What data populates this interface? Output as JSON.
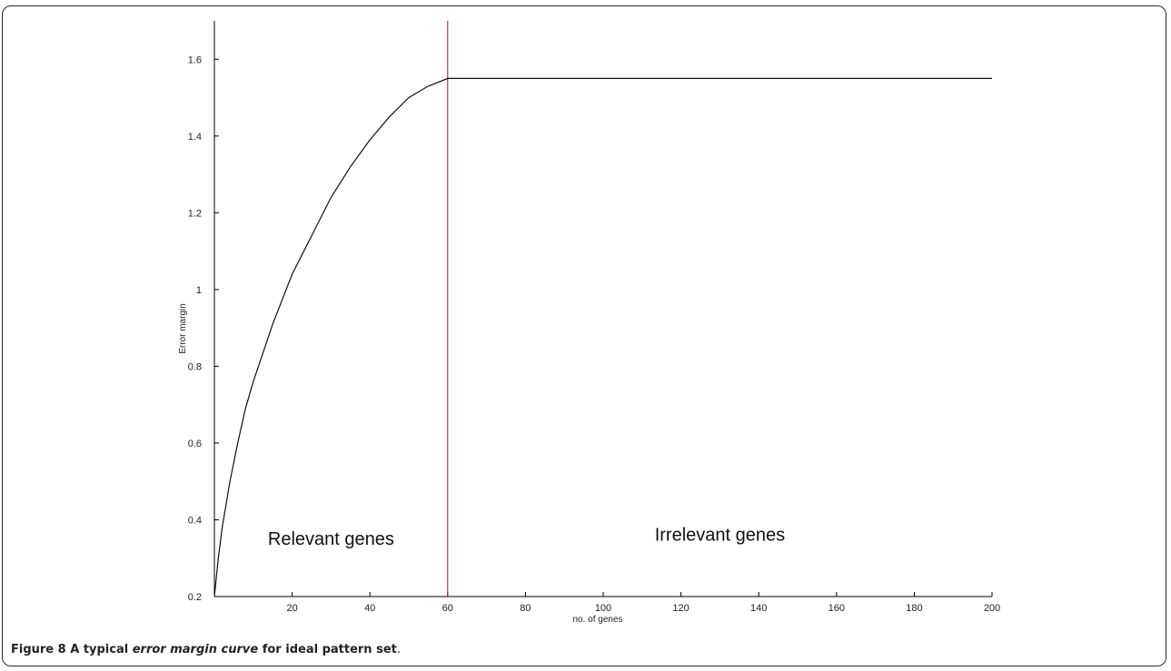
{
  "chart_data": {
    "type": "line",
    "x_range": [
      0,
      200
    ],
    "y_range": [
      0.2,
      1.7
    ],
    "xticks": [
      20,
      40,
      60,
      80,
      100,
      120,
      140,
      160,
      180,
      200
    ],
    "yticks": [
      0.2,
      0.4,
      0.6,
      0.8,
      1,
      1.2,
      1.4,
      1.6
    ],
    "xtick_labels": [
      "20",
      "40",
      "60",
      "80",
      "100",
      "120",
      "140",
      "160",
      "180",
      "200"
    ],
    "ytick_labels": [
      "0.2",
      "0.4",
      "0.6",
      "0.8",
      "1",
      "1.2",
      "1.4",
      "1.6"
    ],
    "xlabel": "no. of genes",
    "ylabel": "Error margin",
    "grid": false,
    "series": [
      {
        "x": [
          0,
          1,
          2,
          4,
          6,
          8,
          10,
          15,
          20,
          25,
          30,
          35,
          40,
          45,
          50,
          55,
          60,
          80,
          100,
          120,
          140,
          160,
          180,
          200
        ],
        "y": [
          0.2,
          0.3,
          0.38,
          0.5,
          0.6,
          0.69,
          0.76,
          0.91,
          1.04,
          1.14,
          1.24,
          1.32,
          1.39,
          1.45,
          1.5,
          1.53,
          1.55,
          1.55,
          1.55,
          1.55,
          1.55,
          1.55,
          1.55,
          1.55
        ],
        "color": "#111111"
      }
    ],
    "vline": {
      "x": 60,
      "color": "#8b1a3a"
    },
    "annotations": [
      {
        "text": "Relevant genes",
        "x": 30,
        "y": 0.335
      },
      {
        "text": "Irrelevant genes",
        "x": 130,
        "y": 0.345
      }
    ]
  },
  "caption": {
    "label": "Figure 8",
    "text_before": " A typical ",
    "text_italic": "error margin curve",
    "text_after": " for ideal pattern set",
    "period": "."
  }
}
